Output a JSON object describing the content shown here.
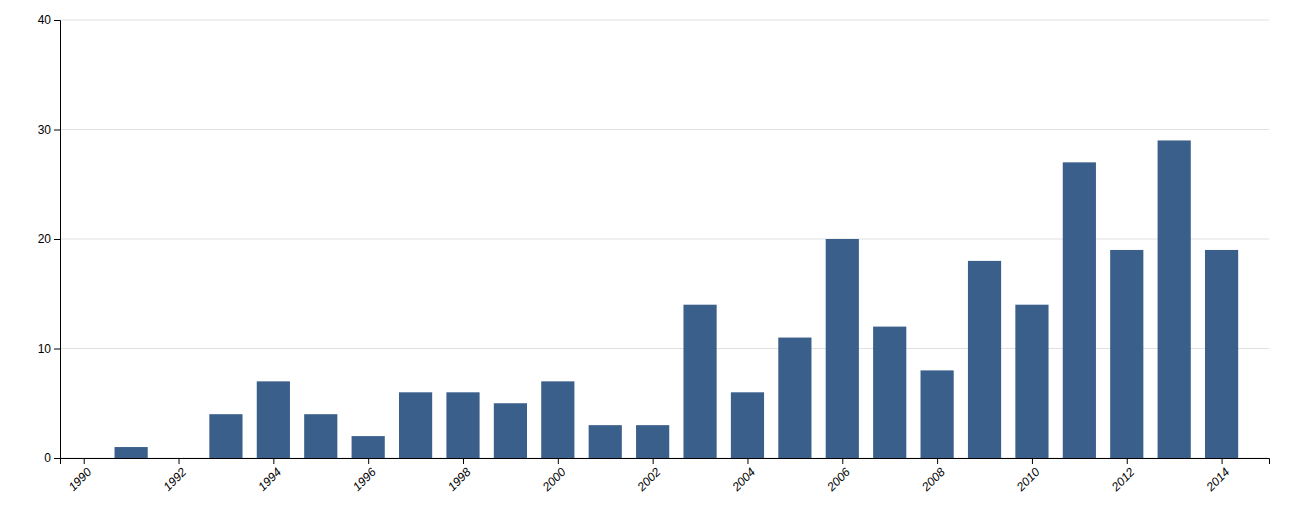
{
  "chart_data": {
    "type": "bar",
    "x": [
      1991,
      1992,
      1993,
      1994,
      1995,
      1996,
      1997,
      1998,
      1999,
      2000,
      2001,
      2002,
      2003,
      2004,
      2005,
      2006,
      2007,
      2008,
      2009,
      2010,
      2011,
      2012,
      2013,
      2014
    ],
    "values": [
      1,
      0,
      4,
      7,
      4,
      2,
      6,
      6,
      5,
      7,
      3,
      3,
      14,
      6,
      11,
      20,
      12,
      8,
      18,
      14,
      27,
      19,
      29,
      19
    ],
    "color": "#3A5F8A",
    "xlim": [
      1989.5,
      2015.0
    ],
    "ylim": [
      0,
      40
    ],
    "xticks": [
      1990,
      1992,
      1994,
      1996,
      1998,
      2000,
      2002,
      2004,
      2006,
      2008,
      2010,
      2012,
      2014
    ],
    "yticks": [
      0,
      10,
      20,
      30,
      40
    ],
    "grid": true
  }
}
